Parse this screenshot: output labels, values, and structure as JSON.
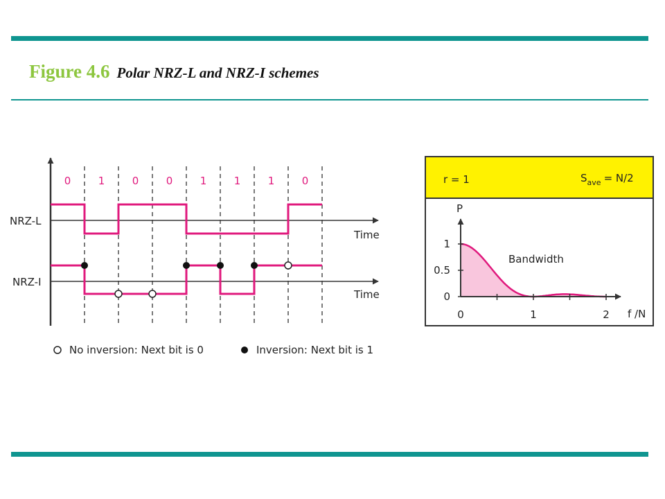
{
  "title": {
    "figure_number": "Figure 4.6",
    "caption": "Polar NRZ-L and NRZ-I schemes"
  },
  "timing": {
    "bits": [
      "0",
      "1",
      "0",
      "0",
      "1",
      "1",
      "1",
      "0"
    ],
    "nrzl_label": "NRZ-L",
    "nrzi_label": "NRZ-I",
    "time_label_top": "Time",
    "time_label_bottom": "Time",
    "nrzi_markers": [
      "inversion",
      "none",
      "none",
      "inversion",
      "inversion",
      "inversion",
      "none"
    ],
    "legend": {
      "no_inversion": "No inversion: Next bit is 0",
      "inversion": "Inversion: Next bit is 1"
    }
  },
  "spectrum": {
    "r_label": "r = 1",
    "s_main": "S",
    "s_sub": "ave",
    "s_rest": "= N/2",
    "y_axis_label": "P",
    "y_ticks": [
      "1",
      "0.5",
      "0"
    ],
    "x_ticks": [
      "0",
      "1",
      "2"
    ],
    "x_axis_label": "f /N",
    "curve_label": "Bandwidth"
  },
  "colors": {
    "teal_bar": "#0f9590",
    "figure_number": "#8dc63f",
    "signal": "#e0197d",
    "spectrum_fill": "#f9c6dd",
    "header_yellow": "#fff200"
  }
}
